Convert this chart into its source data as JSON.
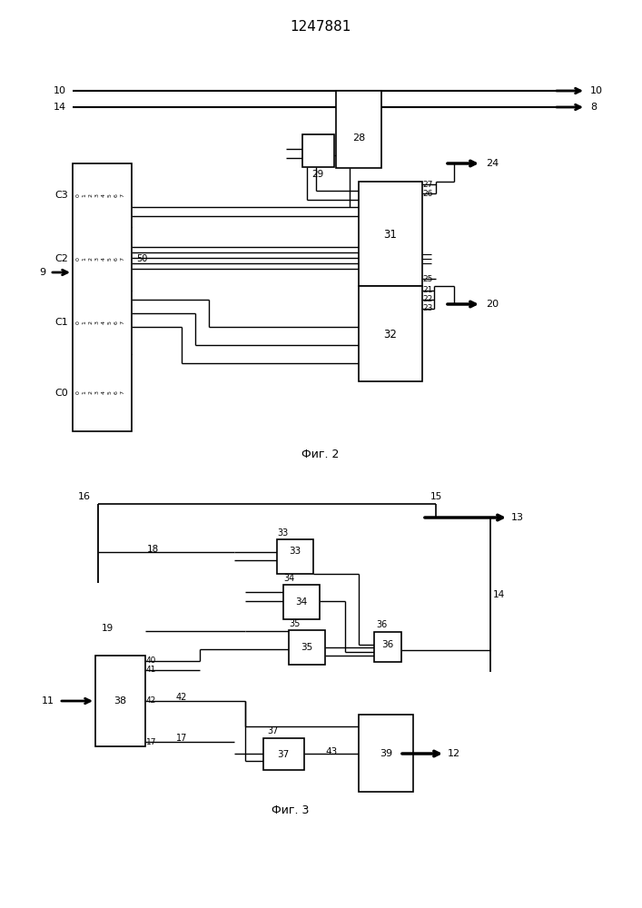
{
  "title": "1247881",
  "fig1_caption": "Фиг. 2",
  "fig2_caption": "Фиг. 3",
  "bg_color": "#ffffff"
}
